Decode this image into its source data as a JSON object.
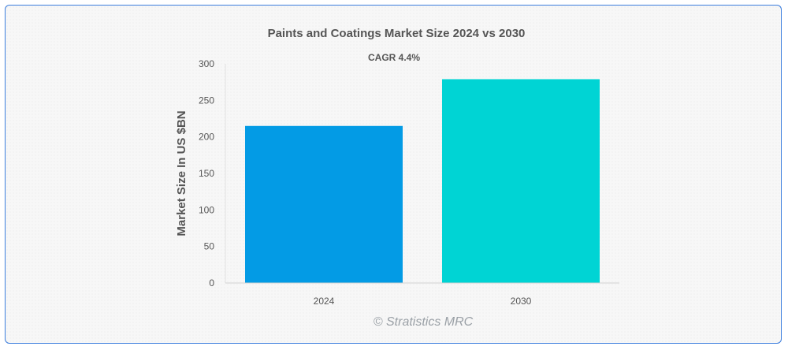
{
  "chart_data": {
    "type": "bar",
    "title": "Paints and Coatings Market Size 2024 vs 2030",
    "subtitle": "CAGR 4.4%",
    "xlabel": "",
    "ylabel": "Market Size In US $BN",
    "categories": [
      "2024",
      "2030"
    ],
    "values": [
      215,
      279
    ],
    "colors": [
      "#039be5",
      "#00d4d4"
    ],
    "ylim": [
      0,
      300
    ],
    "yticks": [
      0,
      50,
      100,
      150,
      200,
      250,
      300
    ],
    "grid": false,
    "legend": "none"
  },
  "credit": "© Stratistics MRC"
}
